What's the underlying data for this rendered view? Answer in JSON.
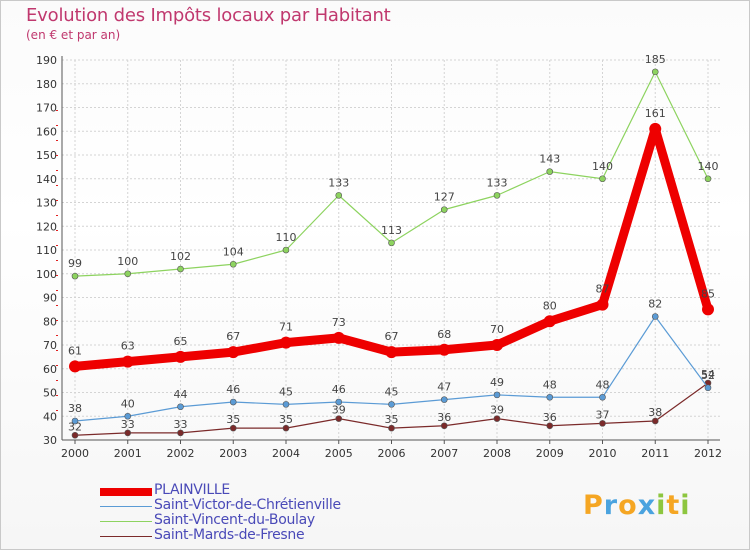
{
  "title": "Evolution des Impôts locaux par Habitant",
  "subtitle": "(en € et par an)",
  "logo": {
    "text": "Proxiti",
    "letters": [
      "P",
      "r",
      "o",
      "x",
      "i",
      "t",
      "i"
    ],
    "colors": [
      "#f5a623",
      "#4aa3df",
      "#f5a623",
      "#4aa3df",
      "#8dc63f",
      "#f5a623",
      "#8dc63f"
    ]
  },
  "chart_data": {
    "type": "line",
    "x": [
      "2000",
      "2001",
      "2002",
      "2003",
      "2004",
      "2005",
      "2006",
      "2007",
      "2008",
      "2009",
      "2010",
      "2011",
      "2012"
    ],
    "y_ticks": [
      "30",
      "40",
      "50",
      "60",
      "70",
      "80",
      "90",
      "100",
      "110",
      "120",
      "130",
      "140",
      "150",
      "160",
      "170",
      "180",
      "190"
    ],
    "ylim": [
      30,
      190
    ],
    "grid": true,
    "legend_position": "bottom-left",
    "series": [
      {
        "name": "PLAINVILLE",
        "color": "#ee0000",
        "labels_above": true,
        "values": [
          61,
          63,
          65,
          67,
          71,
          73,
          67,
          68,
          70,
          80,
          87,
          161,
          85
        ]
      },
      {
        "name": "Saint-Victor-de-Chrétienville",
        "color": "#5b9bd5",
        "labels_above": true,
        "values": [
          38,
          40,
          44,
          46,
          45,
          46,
          45,
          47,
          49,
          48,
          48,
          82,
          52
        ]
      },
      {
        "name": "Saint-Vincent-du-Boulay",
        "color": "#8dd35f",
        "labels_above": true,
        "values": [
          99,
          100,
          102,
          104,
          110,
          133,
          113,
          127,
          133,
          143,
          140,
          185,
          140
        ]
      },
      {
        "name": "Saint-Mards-de-Fresne",
        "color": "#7b2a2a",
        "labels_above": false,
        "values": [
          32,
          33,
          33,
          35,
          35,
          39,
          35,
          36,
          39,
          36,
          37,
          38,
          54
        ]
      }
    ]
  }
}
